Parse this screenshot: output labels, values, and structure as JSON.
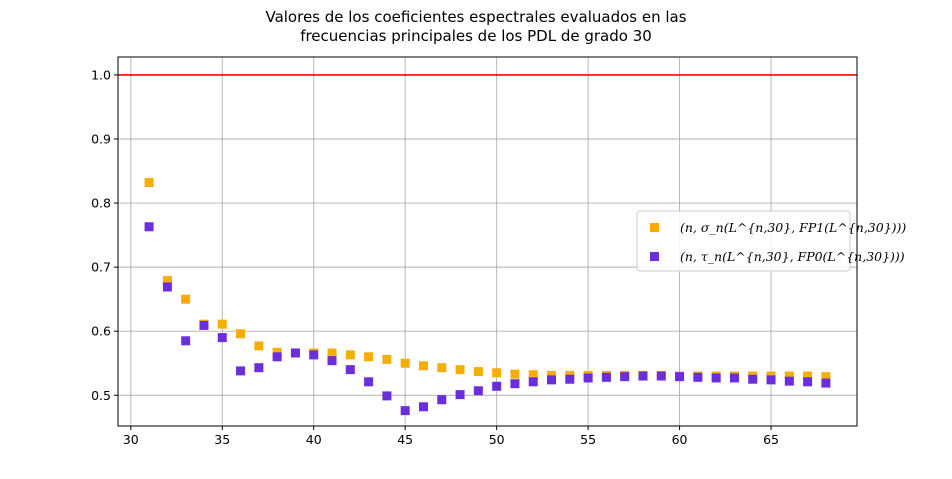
{
  "chart_data": {
    "type": "scatter",
    "title_line1": "Valores de los coeficientes espectrales evaluados en las",
    "title_line2": "frecuencias principales de los PDL de grado 30",
    "xlabel": "",
    "ylabel": "",
    "xlim": [
      29.3,
      69.7
    ],
    "ylim": [
      0.452,
      1.028
    ],
    "xticks": [
      30,
      35,
      40,
      45,
      50,
      55,
      60,
      65
    ],
    "yticks": [
      0.5,
      0.6,
      0.7,
      0.8,
      0.9,
      1.0
    ],
    "xtick_labels": [
      "30",
      "35",
      "40",
      "45",
      "50",
      "55",
      "60",
      "65"
    ],
    "ytick_labels": [
      "0.5",
      "0.6",
      "0.7",
      "0.8",
      "0.9",
      "1.0"
    ],
    "grid": true,
    "legend_position": "center-right",
    "reference_line": {
      "y": 1.0,
      "color": "#ff0000"
    },
    "x": [
      31,
      32,
      33,
      34,
      35,
      36,
      37,
      38,
      39,
      40,
      41,
      42,
      43,
      44,
      45,
      46,
      47,
      48,
      49,
      50,
      51,
      52,
      53,
      54,
      55,
      56,
      57,
      58,
      59,
      60,
      61,
      62,
      63,
      64,
      65,
      66,
      67,
      68
    ],
    "series": [
      {
        "name": "(n, σ_n(L^{n,30}, FP1(L^{n,30})))",
        "color": "#f6ae06",
        "values": [
          0.832,
          0.679,
          0.65,
          0.611,
          0.611,
          0.596,
          0.577,
          0.567,
          0.566,
          0.566,
          0.566,
          0.563,
          0.56,
          0.556,
          0.55,
          0.546,
          0.543,
          0.54,
          0.537,
          0.535,
          0.533,
          0.532,
          0.531,
          0.531,
          0.531,
          0.531,
          0.531,
          0.531,
          0.531,
          0.53,
          0.53,
          0.53,
          0.53,
          0.53,
          0.53,
          0.53,
          0.53,
          0.529
        ]
      },
      {
        "name": "(n, τ_n(L^{n,30}, FP0(L^{n,30})))",
        "color": "#6a2edc",
        "values": [
          0.763,
          0.669,
          0.585,
          0.609,
          0.59,
          0.538,
          0.543,
          0.56,
          0.566,
          0.563,
          0.554,
          0.54,
          0.521,
          0.499,
          0.476,
          0.482,
          0.493,
          0.501,
          0.507,
          0.514,
          0.518,
          0.521,
          0.524,
          0.525,
          0.527,
          0.528,
          0.529,
          0.53,
          0.53,
          0.529,
          0.528,
          0.527,
          0.527,
          0.525,
          0.524,
          0.522,
          0.521,
          0.519
        ]
      }
    ]
  },
  "colors": {
    "grid": "#b0b0b0",
    "axes": "#000000",
    "legend_border": "#cccccc"
  }
}
